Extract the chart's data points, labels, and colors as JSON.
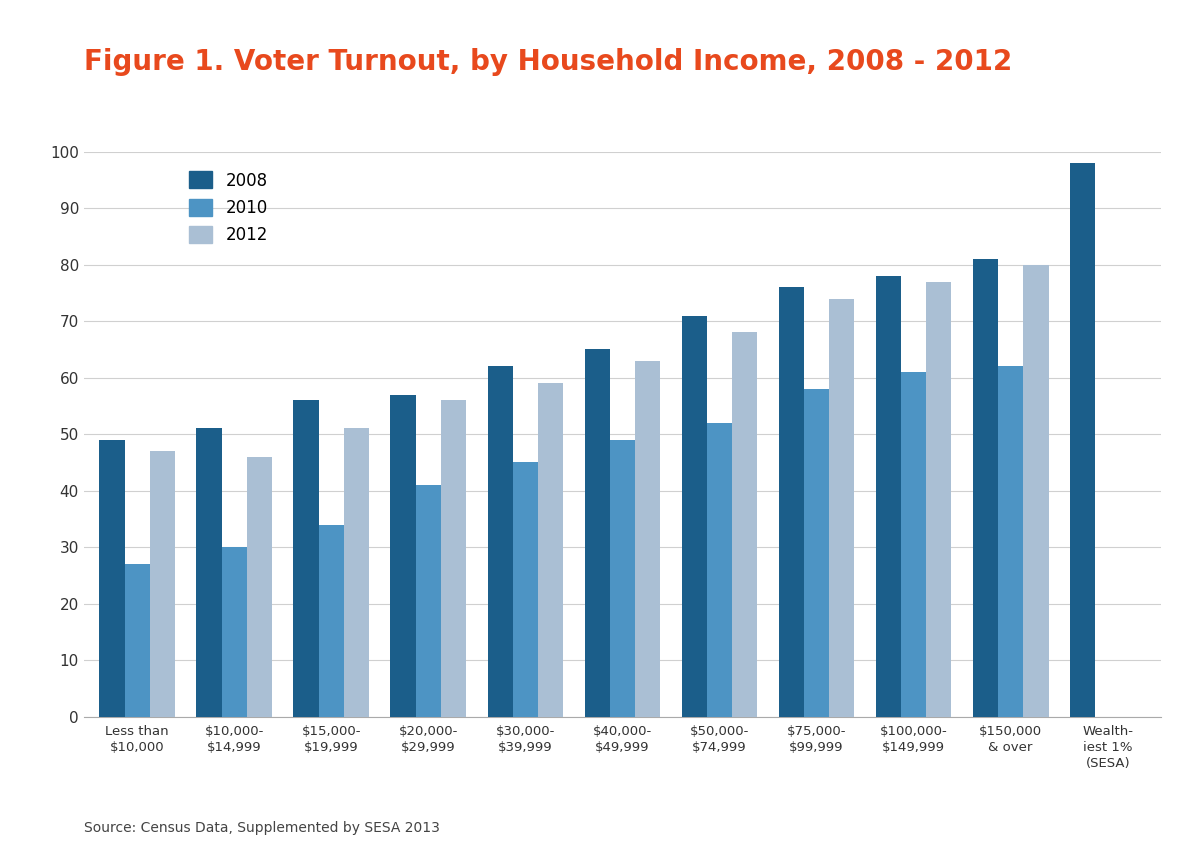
{
  "title": "Figure 1. Voter Turnout, by Household Income, 2008 - 2012",
  "title_color": "#E8491D",
  "title_fontsize": 20,
  "categories": [
    "Less than\n$10,000",
    "$10,000-\n$14,999",
    "$15,000-\n$19,999",
    "$20,000-\n$29,999",
    "$30,000-\n$39,999",
    "$40,000-\n$49,999",
    "$50,000-\n$74,999",
    "$75,000-\n$99,999",
    "$100,000-\n$149,999",
    "$150,000\n& over",
    "Wealth-\niest 1%\n(SESA)"
  ],
  "series": {
    "2008": [
      49,
      51,
      56,
      57,
      62,
      65,
      71,
      76,
      78,
      81,
      98
    ],
    "2010": [
      27,
      30,
      34,
      41,
      45,
      49,
      52,
      58,
      61,
      62,
      null
    ],
    "2012": [
      47,
      46,
      51,
      56,
      59,
      63,
      68,
      74,
      77,
      80,
      null
    ]
  },
  "colors": {
    "2008": "#1B5E8A",
    "2010": "#4D94C4",
    "2012": "#AABFD4"
  },
  "ylim": [
    0,
    100
  ],
  "yticks": [
    0,
    10,
    20,
    30,
    40,
    50,
    60,
    70,
    80,
    90,
    100
  ],
  "source_text": "Source: Census Data, Supplemented by SESA 2013",
  "source_fontsize": 10,
  "legend_labels": [
    "2008",
    "2010",
    "2012"
  ],
  "background_color": "#FFFFFF",
  "grid_color": "#D0D0D0",
  "bar_width": 0.26
}
